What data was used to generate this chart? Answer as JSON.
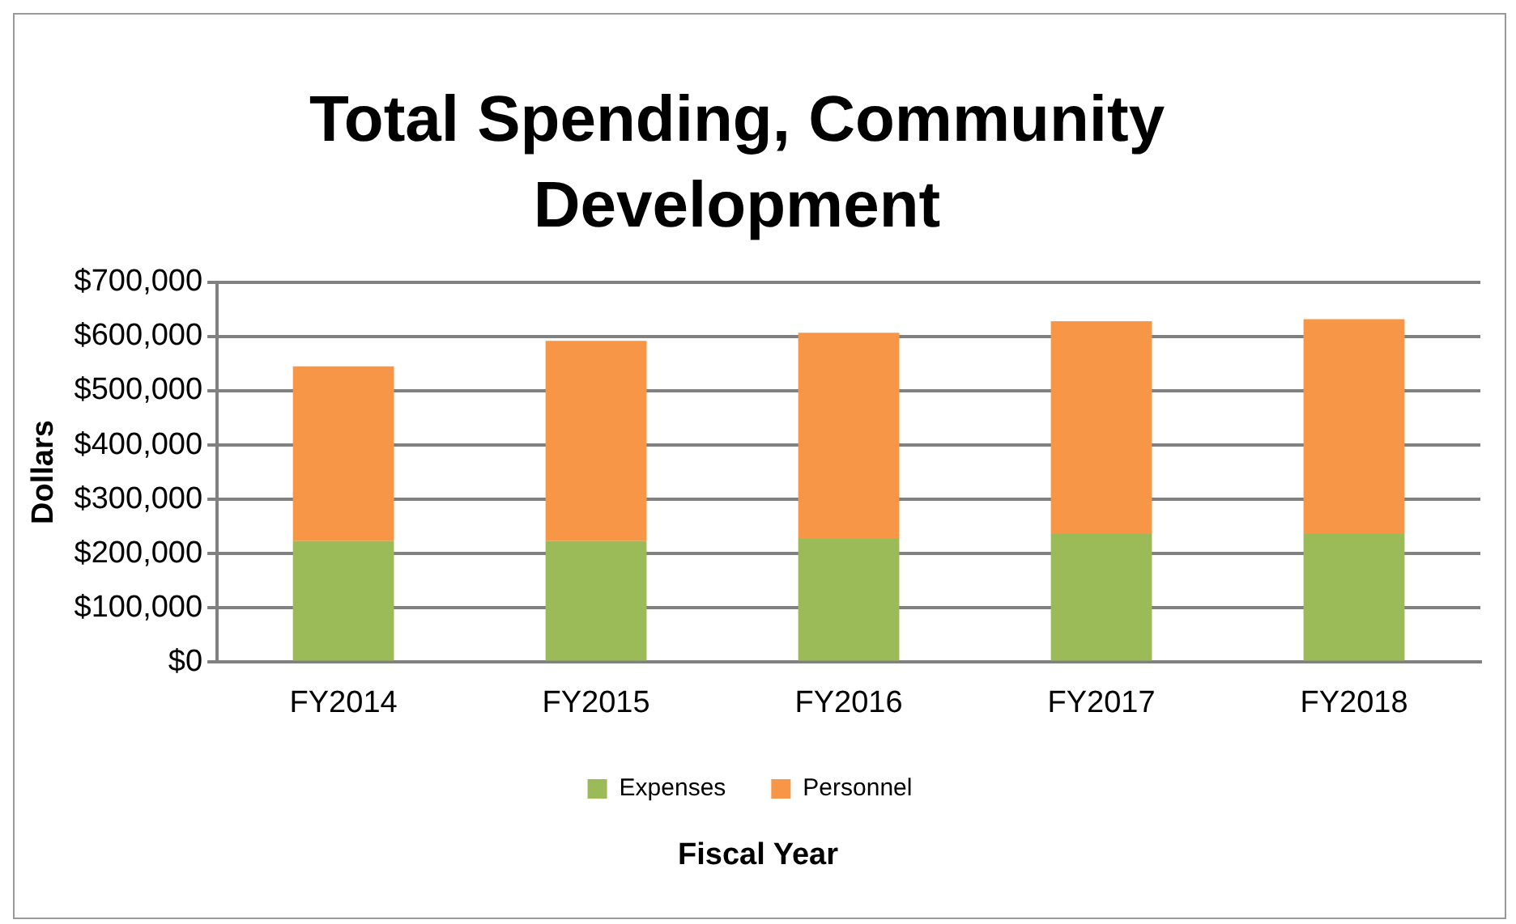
{
  "chart_data": {
    "type": "bar",
    "title": "Total Spending, Community Development",
    "xlabel": "Fiscal Year",
    "ylabel": "Dollars",
    "categories": [
      "FY2014",
      "FY2015",
      "FY2016",
      "FY2017",
      "FY2018"
    ],
    "series": [
      {
        "name": "Expenses",
        "color": "#9bbb59",
        "values": [
          223000,
          223000,
          227000,
          236000,
          236000
        ]
      },
      {
        "name": "Personnel",
        "color": "#f79646",
        "values": [
          322000,
          369000,
          380000,
          392000,
          396000
        ]
      }
    ],
    "stacked": true,
    "ylim": [
      0,
      700000
    ],
    "yticks": [
      {
        "value": 0,
        "label": "$0"
      },
      {
        "value": 100000,
        "label": "$100,000"
      },
      {
        "value": 200000,
        "label": "$200,000"
      },
      {
        "value": 300000,
        "label": "$300,000"
      },
      {
        "value": 400000,
        "label": "$400,000"
      },
      {
        "value": 500000,
        "label": "$500,000"
      },
      {
        "value": 600000,
        "label": "$600,000"
      },
      {
        "value": 700000,
        "label": "$700,000"
      }
    ],
    "grid": "y",
    "legend": "bottom"
  }
}
